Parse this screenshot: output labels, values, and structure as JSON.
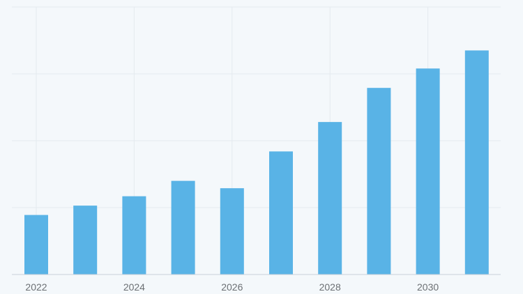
{
  "chart_data": {
    "type": "bar",
    "categories": [
      "2022",
      "2023",
      "2024",
      "2025",
      "2026",
      "2027",
      "2028",
      "2029",
      "2030",
      "2031"
    ],
    "values": [
      0.89,
      1.03,
      1.17,
      1.4,
      1.29,
      1.84,
      2.28,
      2.79,
      3.08,
      3.35
    ],
    "x_tick_labels": [
      "2022",
      "2024",
      "2026",
      "2028",
      "2030"
    ],
    "title": "",
    "xlabel": "",
    "ylabel": "",
    "ylim": [
      0,
      4
    ],
    "y_gridlines": [
      0,
      1,
      2,
      3,
      4
    ],
    "y_tick_labels_shown": false,
    "grid": true,
    "bar_color": "#59b3e6"
  }
}
